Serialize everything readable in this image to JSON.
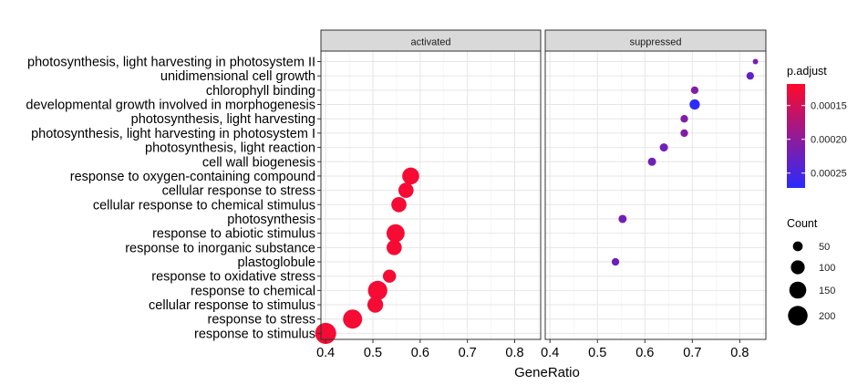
{
  "chart_data": {
    "type": "scatter",
    "xlabel": "GeneRatio",
    "ylabel": "",
    "xlim": [
      0.39,
      0.855
    ],
    "x_ticks": [
      "0.4",
      "0.5",
      "0.6",
      "0.7",
      "0.8"
    ],
    "grid": true,
    "legend_position": "right",
    "categories": [
      "photosynthesis, light harvesting in photosystem II",
      "unidimensional cell growth",
      "chlorophyll binding",
      "developmental growth involved in morphogenesis",
      "photosynthesis, light harvesting",
      "photosynthesis, light harvesting in photosystem I",
      "photosynthesis, light reaction",
      "cell wall biogenesis",
      "response to oxygen-containing compound",
      "cellular response to stress",
      "cellular response to chemical stimulus",
      "photosynthesis",
      "response to abiotic stimulus",
      "response to inorganic substance",
      "plastoglobule",
      "response to oxidative stress",
      "response to chemical",
      "cellular response to stimulus",
      "response to stress",
      "response to stimulus"
    ],
    "panels": [
      {
        "name": "activated",
        "points": [
          {
            "term": "response to oxygen-containing compound",
            "x": 0.58,
            "count": 150,
            "p_adjust": 0.000125
          },
          {
            "term": "cellular response to stress",
            "x": 0.57,
            "count": 120,
            "p_adjust": 0.000125
          },
          {
            "term": "cellular response to chemical stimulus",
            "x": 0.555,
            "count": 120,
            "p_adjust": 0.000125
          },
          {
            "term": "response to abiotic stimulus",
            "x": 0.548,
            "count": 170,
            "p_adjust": 0.000125
          },
          {
            "term": "response to inorganic substance",
            "x": 0.545,
            "count": 120,
            "p_adjust": 0.000125
          },
          {
            "term": "response to oxidative stress",
            "x": 0.535,
            "count": 90,
            "p_adjust": 0.000125
          },
          {
            "term": "response to chemical",
            "x": 0.51,
            "count": 195,
            "p_adjust": 0.000125
          },
          {
            "term": "cellular response to stimulus",
            "x": 0.505,
            "count": 130,
            "p_adjust": 0.000125
          },
          {
            "term": "response to stress",
            "x": 0.457,
            "count": 190,
            "p_adjust": 0.000125
          },
          {
            "term": "response to stimulus",
            "x": 0.4,
            "count": 230,
            "p_adjust": 0.000125
          }
        ]
      },
      {
        "name": "suppressed",
        "points": [
          {
            "term": "photosynthesis, light harvesting in photosystem II",
            "x": 0.833,
            "count": 15,
            "p_adjust": 0.000215
          },
          {
            "term": "unidimensional cell growth",
            "x": 0.822,
            "count": 30,
            "p_adjust": 0.00023
          },
          {
            "term": "chlorophyll binding",
            "x": 0.705,
            "count": 30,
            "p_adjust": 0.00021
          },
          {
            "term": "developmental growth involved in morphogenesis",
            "x": 0.705,
            "count": 55,
            "p_adjust": 0.00027
          },
          {
            "term": "photosynthesis, light harvesting",
            "x": 0.683,
            "count": 30,
            "p_adjust": 0.00021
          },
          {
            "term": "photosynthesis, light harvesting in photosystem I",
            "x": 0.683,
            "count": 30,
            "p_adjust": 0.00021
          },
          {
            "term": "photosynthesis, light reaction",
            "x": 0.64,
            "count": 35,
            "p_adjust": 0.00022
          },
          {
            "term": "cell wall biogenesis",
            "x": 0.615,
            "count": 35,
            "p_adjust": 0.00022
          },
          {
            "term": "photosynthesis",
            "x": 0.553,
            "count": 35,
            "p_adjust": 0.00022
          },
          {
            "term": "plastoglobule",
            "x": 0.538,
            "count": 30,
            "p_adjust": 0.000225
          }
        ]
      }
    ],
    "color_legend": {
      "title": "p.adjust",
      "ticks": [
        "0.00015",
        "0.00020",
        "0.00025"
      ],
      "tick_values": [
        0.00015,
        0.0002,
        0.00025
      ],
      "range": [
        0.000118,
        0.000272
      ],
      "low_color": "#ff0a2a",
      "high_color": "#2a2aff"
    },
    "size_legend": {
      "title": "Count",
      "values": [
        50,
        100,
        150,
        200
      ],
      "labels": [
        "50",
        "100",
        "150",
        "200"
      ]
    }
  }
}
